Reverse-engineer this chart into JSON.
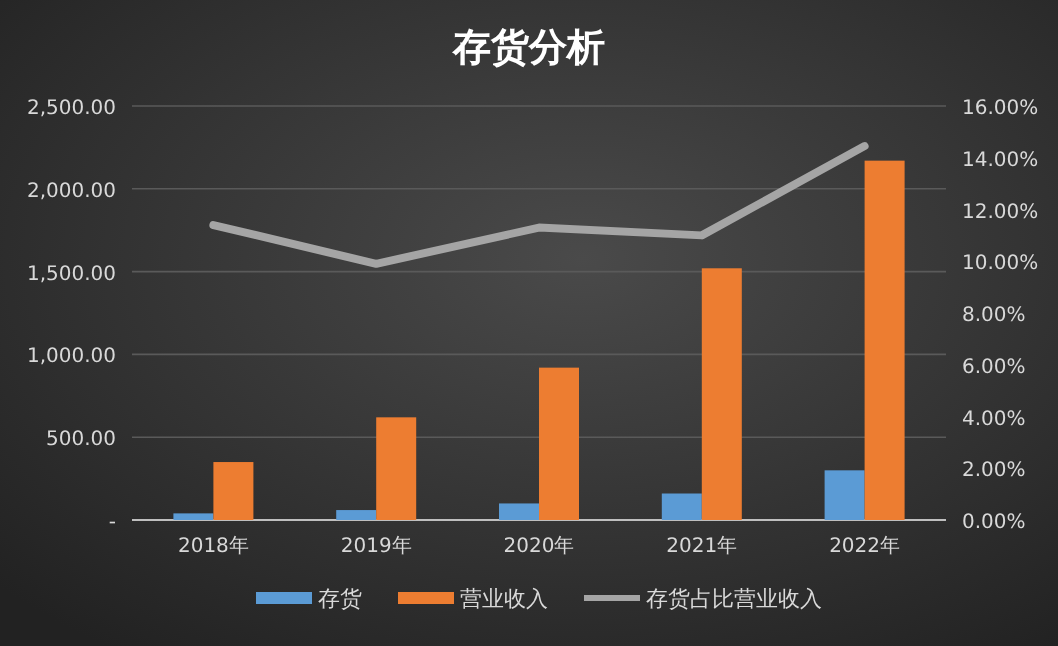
{
  "chart_data": {
    "type": "bar",
    "title": "存货分析",
    "categories": [
      "2018年",
      "2019年",
      "2020年",
      "2021年",
      "2022年"
    ],
    "series": [
      {
        "name": "存货",
        "color": "#5b9bd5",
        "values": [
          40,
          60,
          100,
          160,
          300
        ]
      },
      {
        "name": "营业收入",
        "color": "#ed7d31",
        "values": [
          350,
          620,
          920,
          1520,
          2170
        ]
      },
      {
        "name": "存货占比营业收入",
        "type": "line",
        "axis": "y2",
        "color": "#a5a5a5",
        "values": [
          11.4,
          9.9,
          11.3,
          11.0,
          14.45
        ]
      }
    ],
    "ylim": [
      0,
      2500
    ],
    "yticks": [
      {
        "value": 0,
        "label": "-"
      },
      {
        "value": 500,
        "label": "500.00"
      },
      {
        "value": 1000,
        "label": "1,000.00"
      },
      {
        "value": 1500,
        "label": "1,500.00"
      },
      {
        "value": 2000,
        "label": "2,000.00"
      },
      {
        "value": 2500,
        "label": "2,500.00"
      }
    ],
    "y2lim": [
      0,
      16
    ],
    "y2ticks": [
      {
        "value": 0,
        "label": "0.00%"
      },
      {
        "value": 2,
        "label": "2.00%"
      },
      {
        "value": 4,
        "label": "4.00%"
      },
      {
        "value": 6,
        "label": "6.00%"
      },
      {
        "value": 8,
        "label": "8.00%"
      },
      {
        "value": 10,
        "label": "10.00%"
      },
      {
        "value": 12,
        "label": "12.00%"
      },
      {
        "value": 14,
        "label": "14.00%"
      },
      {
        "value": 16,
        "label": "16.00%"
      }
    ],
    "grid": "y",
    "legend": "bottom"
  }
}
